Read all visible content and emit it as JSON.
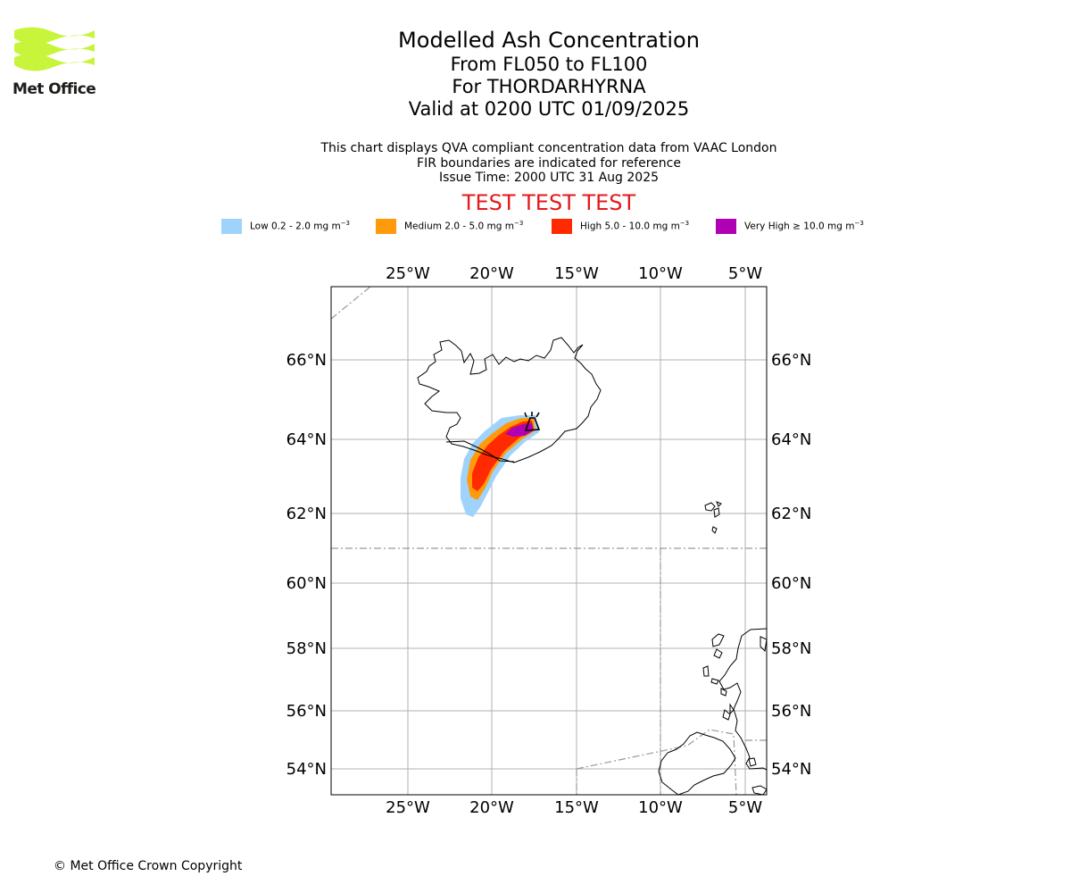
{
  "branding": {
    "logo_text": "Met Office",
    "logo_color": "#c8f53c"
  },
  "header": {
    "title": "Modelled Ash Concentration",
    "flight_levels": "From FL050 to FL100",
    "volcano": "For THORDARHYRNA",
    "valid_time": "Valid at 0200 UTC 01/09/2025"
  },
  "notes": {
    "line1": "This chart displays QVA compliant concentration data from VAAC London",
    "line2": "FIR boundaries are indicated for reference",
    "issue_time": "Issue Time: 2000 UTC 31 Aug 2025"
  },
  "banner": {
    "text": "TEST TEST TEST",
    "color": "#e41a1c"
  },
  "legend": [
    {
      "label": "Low 0.2 - 2.0 mg m",
      "unit_exp": "−3",
      "color": "#9fd3fb"
    },
    {
      "label": "Medium 2.0 - 5.0 mg m",
      "unit_exp": "−3",
      "color": "#ff9a0b"
    },
    {
      "label": "High 5.0 - 10.0 mg m",
      "unit_exp": "−3",
      "color": "#ff2a00"
    },
    {
      "label": "Very High  ≥  10.0 mg m",
      "unit_exp": "−3",
      "color": "#b000b4"
    }
  ],
  "map": {
    "lon_ticks": [
      "25°W",
      "20°W",
      "15°W",
      "10°W",
      "5°W"
    ],
    "lat_ticks": [
      "66°N",
      "64°N",
      "62°N",
      "60°N",
      "58°N",
      "56°N",
      "54°N"
    ],
    "volcano_marker": "volcano-icon",
    "fir_boundary_color": "#999999"
  },
  "footer": {
    "copyright": "© Met Office Crown Copyright"
  }
}
